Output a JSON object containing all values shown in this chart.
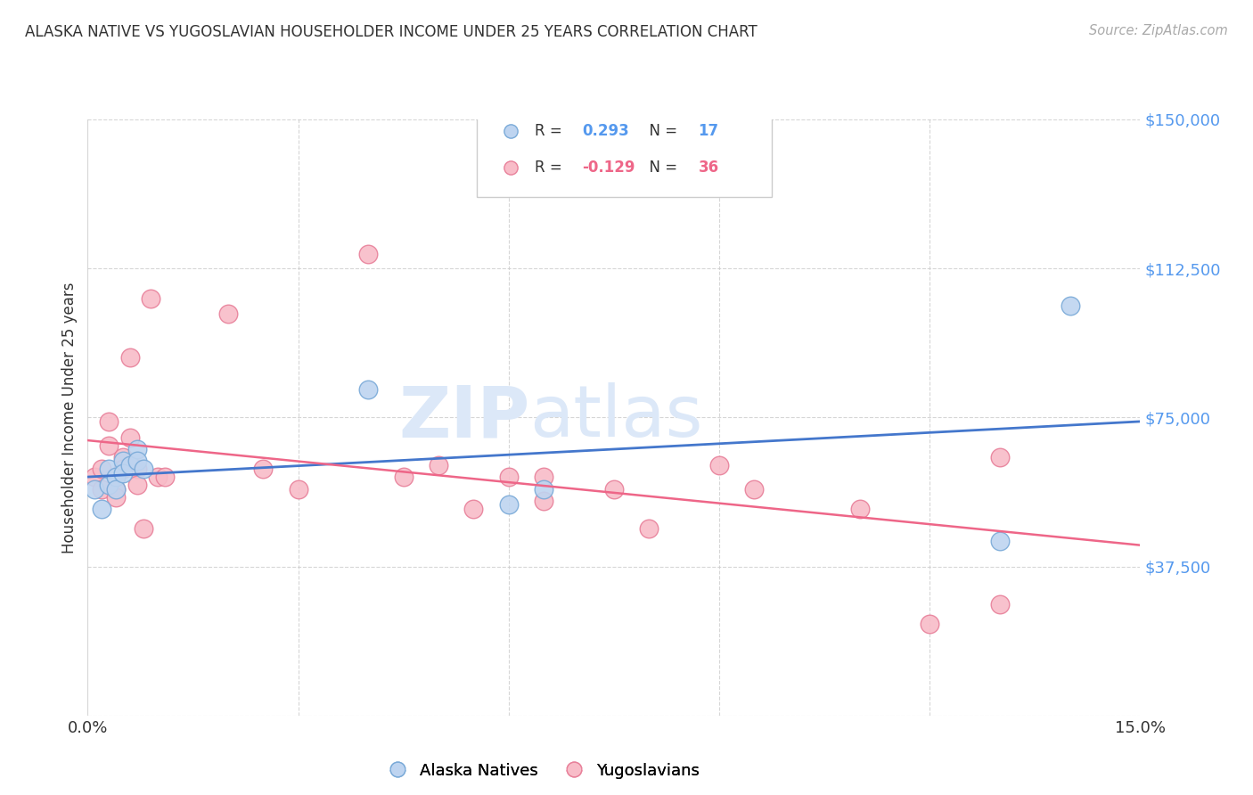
{
  "title": "ALASKA NATIVE VS YUGOSLAVIAN HOUSEHOLDER INCOME UNDER 25 YEARS CORRELATION CHART",
  "source": "Source: ZipAtlas.com",
  "ylabel": "Householder Income Under 25 years",
  "xlim": [
    0.0,
    0.15
  ],
  "ylim": [
    0,
    150000
  ],
  "yticks": [
    0,
    37500,
    75000,
    112500,
    150000
  ],
  "ytick_labels": [
    "",
    "$37,500",
    "$75,000",
    "$112,500",
    "$150,000"
  ],
  "background_color": "#ffffff",
  "grid_color": "#cccccc",
  "alaska_color": "#bed4f0",
  "alaska_edge_color": "#7aaad8",
  "yugo_color": "#f8bcc8",
  "yugo_edge_color": "#e8809a",
  "blue_line_color": "#4477cc",
  "pink_line_color": "#ee6688",
  "watermark_zip_color": "#dce8f8",
  "watermark_atlas_color": "#dce8f8",
  "ytick_color": "#5599ee",
  "R_blue": 0.293,
  "N_blue": 17,
  "R_pink": -0.129,
  "N_pink": 36,
  "alaska_x": [
    0.001,
    0.002,
    0.003,
    0.003,
    0.004,
    0.004,
    0.005,
    0.005,
    0.006,
    0.007,
    0.007,
    0.008,
    0.04,
    0.06,
    0.065,
    0.13,
    0.14
  ],
  "alaska_y": [
    57000,
    52000,
    58000,
    62000,
    60000,
    57000,
    64000,
    61000,
    63000,
    67000,
    64000,
    62000,
    82000,
    53000,
    57000,
    44000,
    103000
  ],
  "yugo_x": [
    0.001,
    0.002,
    0.002,
    0.003,
    0.003,
    0.004,
    0.004,
    0.004,
    0.005,
    0.005,
    0.006,
    0.006,
    0.007,
    0.007,
    0.008,
    0.009,
    0.01,
    0.011,
    0.02,
    0.025,
    0.03,
    0.04,
    0.045,
    0.05,
    0.055,
    0.06,
    0.065,
    0.065,
    0.075,
    0.08,
    0.09,
    0.095,
    0.11,
    0.12,
    0.13,
    0.13
  ],
  "yugo_y": [
    60000,
    62000,
    57000,
    68000,
    74000,
    60000,
    57000,
    55000,
    65000,
    62000,
    90000,
    70000,
    62000,
    58000,
    47000,
    105000,
    60000,
    60000,
    101000,
    62000,
    57000,
    116000,
    60000,
    63000,
    52000,
    60000,
    54000,
    60000,
    57000,
    47000,
    63000,
    57000,
    52000,
    23000,
    28000,
    65000
  ]
}
